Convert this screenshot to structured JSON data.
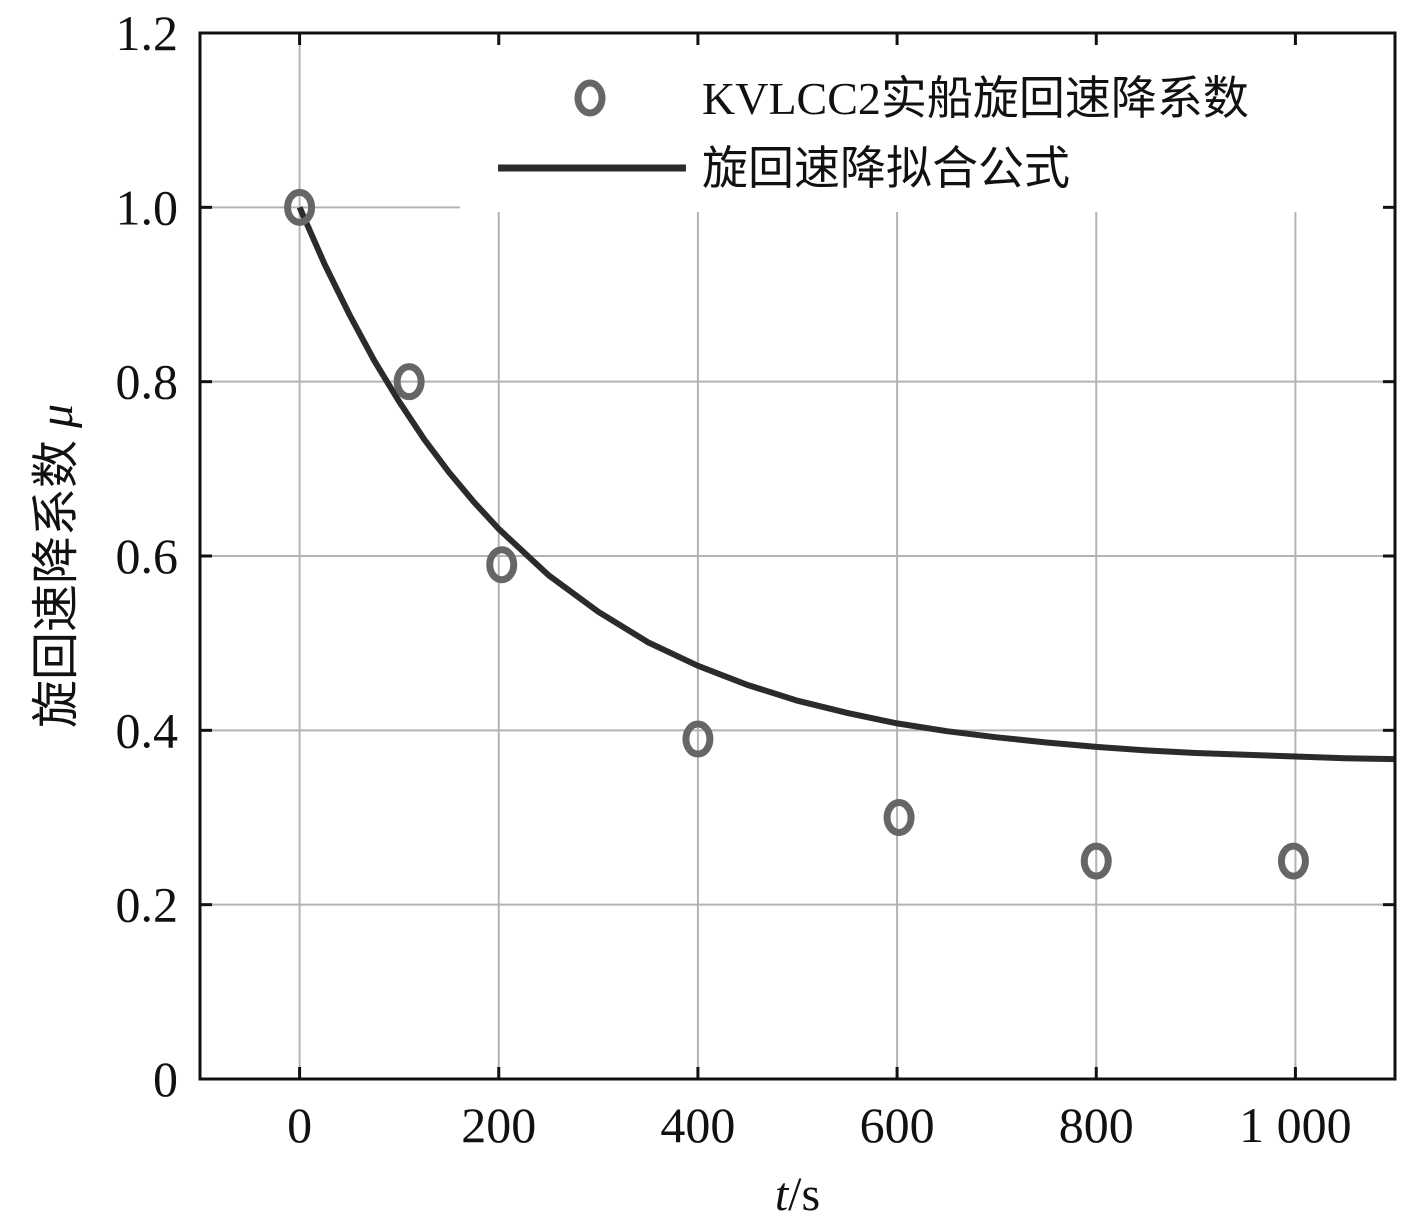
{
  "chart_data": {
    "type": "scatter",
    "xlabel": "t/s",
    "ylabel": "旋回速降系数 μ",
    "xlim": [
      -100,
      1100
    ],
    "ylim": [
      0,
      1.2
    ],
    "x_ticks": [
      0,
      200,
      400,
      600,
      800,
      1000
    ],
    "x_tick_labels": [
      "0",
      "200",
      "400",
      "600",
      "800",
      "1 000"
    ],
    "y_ticks": [
      0,
      0.2,
      0.4,
      0.6,
      0.8,
      1.0,
      1.2
    ],
    "y_tick_labels": [
      "0",
      "0.2",
      "0.4",
      "0.6",
      "0.8",
      "1.0",
      "1.2"
    ],
    "grid": true,
    "legend_position": "top-right",
    "series": [
      {
        "name": "KVLCC2实船旋回速降系数",
        "type": "scatter",
        "marker": "circle",
        "color": "#666666",
        "x": [
          0,
          110,
          203,
          400,
          602,
          800,
          998
        ],
        "y": [
          1.0,
          0.8,
          0.59,
          0.39,
          0.3,
          0.25,
          0.25
        ]
      },
      {
        "name": "旋回速降拟合公式",
        "type": "line",
        "color": "#2b2b2b",
        "x": [
          0,
          25,
          50,
          75,
          100,
          125,
          150,
          175,
          200,
          250,
          300,
          350,
          400,
          450,
          500,
          550,
          600,
          650,
          700,
          750,
          800,
          850,
          900,
          950,
          1000,
          1050,
          1100
        ],
        "y": [
          1.0,
          0.935,
          0.877,
          0.824,
          0.777,
          0.734,
          0.696,
          0.662,
          0.631,
          0.578,
          0.536,
          0.501,
          0.474,
          0.452,
          0.434,
          0.42,
          0.408,
          0.399,
          0.392,
          0.386,
          0.381,
          0.377,
          0.374,
          0.372,
          0.37,
          0.368,
          0.367
        ]
      }
    ]
  }
}
